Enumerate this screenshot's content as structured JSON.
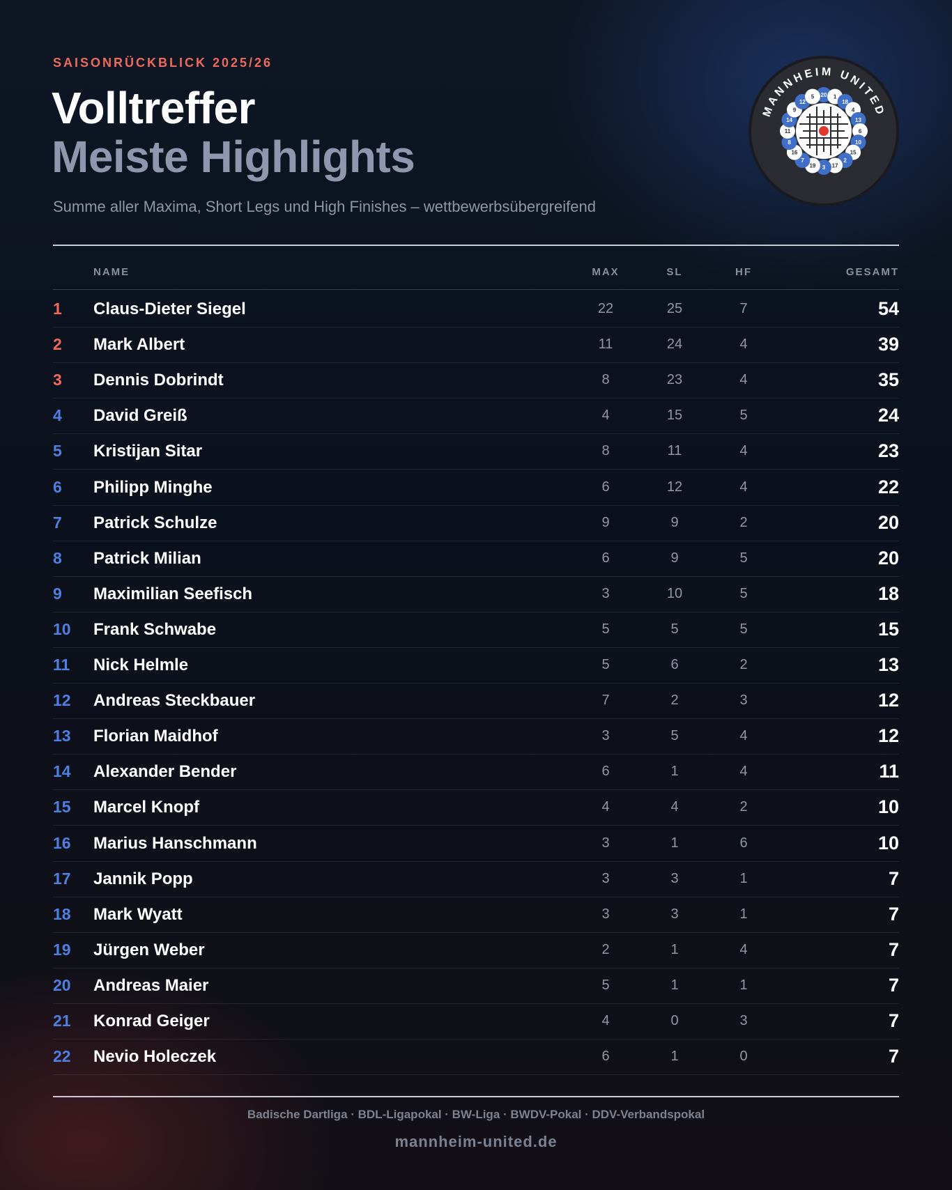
{
  "header": {
    "eyebrow": "SAISONRÜCKBLICK 2025/26",
    "title": "Volltreffer",
    "title_accent": "Meiste Highlights",
    "subtitle": "Summe aller Maxima, Short Legs und High Finishes – wettbewerbsübergreifend"
  },
  "logo": {
    "text": "MANNHEIM UNITED",
    "numbers": [
      "20",
      "1",
      "18",
      "4",
      "13",
      "6",
      "10",
      "15",
      "2",
      "17",
      "3",
      "19",
      "7",
      "16",
      "8",
      "11",
      "14",
      "9",
      "12",
      "5"
    ]
  },
  "table": {
    "columns": [
      "NAME",
      "MAX",
      "SL",
      "HF",
      "GESAMT"
    ],
    "rows": [
      [
        1,
        "Claus-Dieter Siegel",
        22,
        25,
        7,
        54
      ],
      [
        2,
        "Mark Albert",
        11,
        24,
        4,
        39
      ],
      [
        3,
        "Dennis Dobrindt",
        8,
        23,
        4,
        35
      ],
      [
        4,
        "David Greiß",
        4,
        15,
        5,
        24
      ],
      [
        5,
        "Kristijan Sitar",
        8,
        11,
        4,
        23
      ],
      [
        6,
        "Philipp Minghe",
        6,
        12,
        4,
        22
      ],
      [
        7,
        "Patrick Schulze",
        9,
        9,
        2,
        20
      ],
      [
        8,
        "Patrick Milian",
        6,
        9,
        5,
        20
      ],
      [
        9,
        "Maximilian Seefisch",
        3,
        10,
        5,
        18
      ],
      [
        10,
        "Frank Schwabe",
        5,
        5,
        5,
        15
      ],
      [
        11,
        "Nick Helmle",
        5,
        6,
        2,
        13
      ],
      [
        12,
        "Andreas Steckbauer",
        7,
        2,
        3,
        12
      ],
      [
        13,
        "Florian Maidhof",
        3,
        5,
        4,
        12
      ],
      [
        14,
        "Alexander Bender",
        6,
        1,
        4,
        11
      ],
      [
        15,
        "Marcel Knopf",
        4,
        4,
        2,
        10
      ],
      [
        16,
        "Marius Hanschmann",
        3,
        1,
        6,
        10
      ],
      [
        17,
        "Jannik Popp",
        3,
        3,
        1,
        7
      ],
      [
        18,
        "Mark Wyatt",
        3,
        3,
        1,
        7
      ],
      [
        19,
        "Jürgen Weber",
        2,
        1,
        4,
        7
      ],
      [
        20,
        "Andreas Maier",
        5,
        1,
        1,
        7
      ],
      [
        21,
        "Konrad Geiger",
        4,
        0,
        3,
        7
      ],
      [
        22,
        "Nevio Holeczek",
        6,
        1,
        0,
        7
      ]
    ]
  },
  "footer": {
    "competitions": "Badische Dartliga · BDL-Ligapokal · BW-Liga · BWDV-Pokal · DDV-Verbandspokal",
    "url": "mannheim-united.de"
  }
}
